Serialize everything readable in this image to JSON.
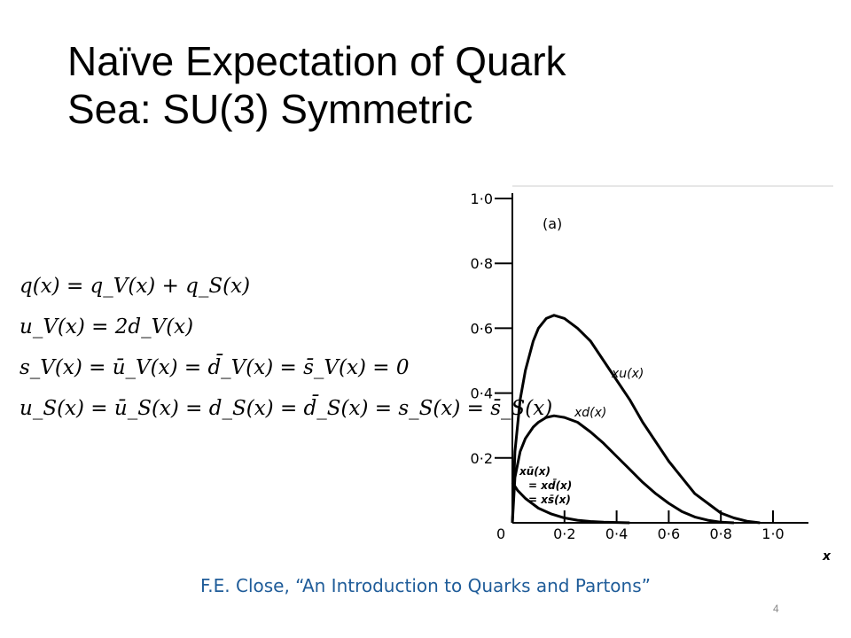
{
  "slide": {
    "title_line1": "Naïve Expectation of Quark",
    "title_line2": "Sea: SU(3) Symmetric",
    "caption": "F.E. Close, “An Introduction to Quarks and Partons”",
    "page_number": "4",
    "equations": [
      "q(x) = q_V(x) + q_S(x)",
      "u_V(x) = 2d_V(x)",
      "s_V(x) = ū_V(x) = d̄_V(x) = s̄_V(x) = 0",
      "u_S(x) = ū_S(x) = d_S(x) = d̄_S(x) = s_S(x) = s̄_S(x)"
    ]
  },
  "chart_data": {
    "type": "line",
    "panel_label": "(a)",
    "xlabel": "x",
    "ylabel": "",
    "xlim": [
      0,
      1.0
    ],
    "ylim": [
      0,
      1.0
    ],
    "x_ticks": [
      "0",
      "0·2",
      "0·4",
      "0·6",
      "0·8",
      "1·0"
    ],
    "y_ticks": [
      "0·2",
      "0·4",
      "0·6",
      "0·8",
      "1·0"
    ],
    "series": [
      {
        "name": "xu(x)",
        "x": [
          0.0,
          0.01,
          0.03,
          0.05,
          0.08,
          0.1,
          0.13,
          0.16,
          0.2,
          0.25,
          0.3,
          0.35,
          0.4,
          0.45,
          0.5,
          0.55,
          0.6,
          0.65,
          0.7,
          0.75,
          0.8,
          0.85,
          0.9,
          0.95
        ],
        "y": [
          0.0,
          0.22,
          0.38,
          0.47,
          0.56,
          0.6,
          0.63,
          0.64,
          0.63,
          0.6,
          0.56,
          0.5,
          0.44,
          0.38,
          0.31,
          0.25,
          0.19,
          0.14,
          0.09,
          0.06,
          0.03,
          0.015,
          0.005,
          0.0
        ]
      },
      {
        "name": "xd(x)",
        "x": [
          0.0,
          0.01,
          0.03,
          0.05,
          0.08,
          0.1,
          0.13,
          0.16,
          0.2,
          0.25,
          0.3,
          0.35,
          0.4,
          0.45,
          0.5,
          0.55,
          0.6,
          0.65,
          0.7,
          0.75,
          0.8,
          0.85
        ],
        "y": [
          0.0,
          0.14,
          0.22,
          0.26,
          0.295,
          0.31,
          0.325,
          0.33,
          0.325,
          0.31,
          0.28,
          0.245,
          0.205,
          0.165,
          0.125,
          0.09,
          0.06,
          0.035,
          0.018,
          0.008,
          0.002,
          0.0
        ]
      },
      {
        "name": "xū(x) = xd̄(x) = xs̄(x)",
        "x": [
          0.0,
          0.02,
          0.05,
          0.1,
          0.15,
          0.2,
          0.25,
          0.3,
          0.35,
          0.4,
          0.45
        ],
        "y": [
          0.125,
          0.1,
          0.075,
          0.045,
          0.027,
          0.015,
          0.008,
          0.004,
          0.002,
          0.001,
          0.0
        ]
      }
    ],
    "curve_labels": [
      {
        "text": "xu(x)",
        "series": 0
      },
      {
        "text": "xd(x)",
        "series": 1
      },
      {
        "text": "xū(x)",
        "series": 2
      },
      {
        "text": "= xd̄(x)",
        "series": 2
      },
      {
        "text": "= xs̄(x)",
        "series": 2
      }
    ],
    "grid": false
  }
}
